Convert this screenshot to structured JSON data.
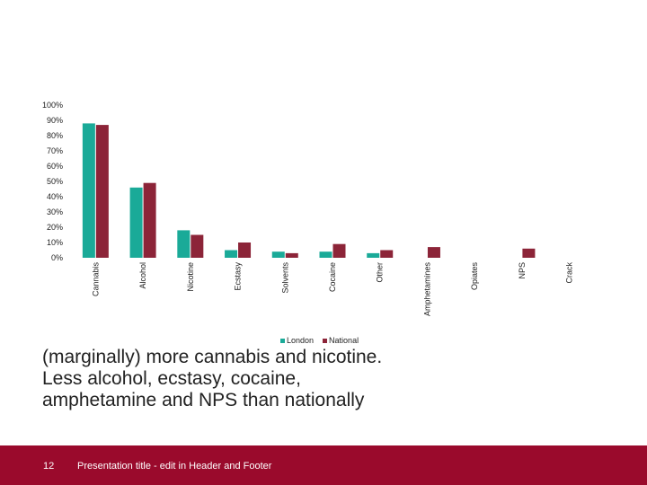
{
  "chart_data": {
    "type": "bar",
    "categories": [
      "Cannabis",
      "Alcohol",
      "Nicotine",
      "Ecstasy",
      "Solvents",
      "Cocaine",
      "Other",
      "Amphetamines",
      "Opiates",
      "NPS",
      "Crack"
    ],
    "series": [
      {
        "name": "London",
        "values": [
          88,
          46,
          18,
          5,
          4,
          4,
          3,
          0,
          0,
          0,
          0
        ]
      },
      {
        "name": "National",
        "values": [
          87,
          49,
          15,
          10,
          3,
          9,
          5,
          7,
          0,
          6,
          0
        ]
      }
    ],
    "yticks": [
      "0%",
      "10%",
      "20%",
      "30%",
      "40%",
      "50%",
      "60%",
      "70%",
      "80%",
      "90%",
      "100%"
    ],
    "ylim": [
      0,
      100
    ],
    "colors": {
      "London": "#1aaa98",
      "National": "#8c2438"
    },
    "legend_position": "bottom"
  },
  "caption": "(marginally) more cannabis and nicotine. Less alcohol, ecstasy, cocaine, amphetamine and NPS than nationally",
  "footer": {
    "page_number": "12",
    "text": "Presentation title - edit in Header and Footer"
  }
}
